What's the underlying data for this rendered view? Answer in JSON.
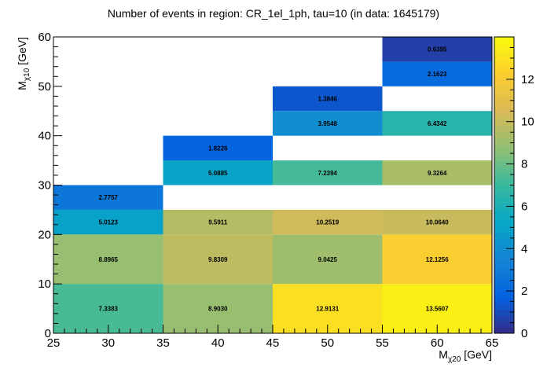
{
  "chart_data": {
    "type": "heatmap",
    "title": "Number of events in region: CR_1el_1ph, tau=10 (in data: 1645179)",
    "xlabel": {
      "main": "M",
      "sub": "χ20",
      "unit": " [GeV]"
    },
    "ylabel": {
      "main": "M",
      "sub": "χ10",
      "unit": " [GeV]"
    },
    "xlim": [
      25,
      65
    ],
    "ylim": [
      0,
      60
    ],
    "x_ticks": [
      25,
      30,
      35,
      40,
      45,
      50,
      55,
      60,
      65
    ],
    "y_ticks": [
      0,
      10,
      20,
      30,
      40,
      50,
      60
    ],
    "zlim": [
      0,
      14
    ],
    "z_ticks": [
      0,
      2,
      4,
      6,
      8,
      10,
      12
    ],
    "cells": [
      {
        "x0": 25,
        "x1": 35,
        "y0": 0,
        "y1": 10,
        "value": 7.3383,
        "label": "7.3383"
      },
      {
        "x0": 35,
        "x1": 45,
        "y0": 0,
        "y1": 10,
        "value": 8.903,
        "label": "8.9030"
      },
      {
        "x0": 45,
        "x1": 55,
        "y0": 0,
        "y1": 10,
        "value": 12.9131,
        "label": "12.9131"
      },
      {
        "x0": 55,
        "x1": 65,
        "y0": 0,
        "y1": 10,
        "value": 13.5607,
        "label": "13.5607"
      },
      {
        "x0": 25,
        "x1": 35,
        "y0": 10,
        "y1": 20,
        "value": 8.8965,
        "label": "8.8965"
      },
      {
        "x0": 35,
        "x1": 45,
        "y0": 10,
        "y1": 20,
        "value": 9.8309,
        "label": "9.8309"
      },
      {
        "x0": 45,
        "x1": 55,
        "y0": 10,
        "y1": 20,
        "value": 9.0425,
        "label": "9.0425"
      },
      {
        "x0": 55,
        "x1": 65,
        "y0": 10,
        "y1": 20,
        "value": 12.1256,
        "label": "12.1256"
      },
      {
        "x0": 25,
        "x1": 35,
        "y0": 20,
        "y1": 25,
        "value": 5.0123,
        "label": "5.0123"
      },
      {
        "x0": 35,
        "x1": 45,
        "y0": 20,
        "y1": 25,
        "value": 9.5911,
        "label": "9.5911"
      },
      {
        "x0": 45,
        "x1": 55,
        "y0": 20,
        "y1": 25,
        "value": 10.2519,
        "label": "10.2519"
      },
      {
        "x0": 55,
        "x1": 65,
        "y0": 20,
        "y1": 25,
        "value": 10.064,
        "label": "10.0640"
      },
      {
        "x0": 25,
        "x1": 35,
        "y0": 25,
        "y1": 30,
        "value": 2.7757,
        "label": "2.7757"
      },
      {
        "x0": 35,
        "x1": 45,
        "y0": 30,
        "y1": 35,
        "value": 5.0885,
        "label": "5.0885"
      },
      {
        "x0": 45,
        "x1": 55,
        "y0": 30,
        "y1": 35,
        "value": 7.2394,
        "label": "7.2394"
      },
      {
        "x0": 55,
        "x1": 65,
        "y0": 30,
        "y1": 35,
        "value": 9.3264,
        "label": "9.3264"
      },
      {
        "x0": 35,
        "x1": 45,
        "y0": 35,
        "y1": 40,
        "value": 1.8226,
        "label": "1.8226"
      },
      {
        "x0": 45,
        "x1": 55,
        "y0": 40,
        "y1": 45,
        "value": 3.9548,
        "label": "3.9548"
      },
      {
        "x0": 55,
        "x1": 65,
        "y0": 40,
        "y1": 45,
        "value": 6.4342,
        "label": "6.4342"
      },
      {
        "x0": 45,
        "x1": 55,
        "y0": 45,
        "y1": 50,
        "value": 1.3846,
        "label": "1.3846"
      },
      {
        "x0": 55,
        "x1": 65,
        "y0": 50,
        "y1": 55,
        "value": 2.1623,
        "label": "2.1623"
      },
      {
        "x0": 55,
        "x1": 65,
        "y0": 55,
        "y1": 60,
        "value": 0.6395,
        "label": "0.6395"
      }
    ],
    "palette": [
      "#352a87",
      "#0363e1",
      "#1485d4",
      "#06a7c6",
      "#38b99e",
      "#92bf73",
      "#d9ba56",
      "#fcce2e",
      "#f9fb0e"
    ],
    "grid": false,
    "colorbar": "right"
  }
}
